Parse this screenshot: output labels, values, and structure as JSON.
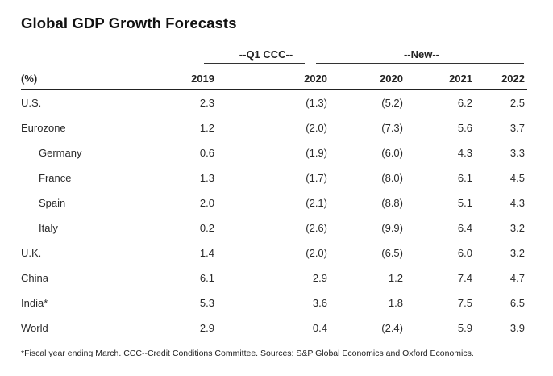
{
  "title": "Global GDP Growth Forecasts",
  "groups": {
    "q1": "--Q1 CCC--",
    "new": "--New--"
  },
  "columns": [
    "(%)",
    "2019",
    "2020",
    "2020",
    "2021",
    "2022"
  ],
  "rows": [
    {
      "label": "U.S.",
      "indent": false,
      "values": [
        "2.3",
        "(1.3)",
        "(5.2)",
        "6.2",
        "2.5"
      ]
    },
    {
      "label": "Eurozone",
      "indent": false,
      "values": [
        "1.2",
        "(2.0)",
        "(7.3)",
        "5.6",
        "3.7"
      ]
    },
    {
      "label": "Germany",
      "indent": true,
      "values": [
        "0.6",
        "(1.9)",
        "(6.0)",
        "4.3",
        "3.3"
      ]
    },
    {
      "label": "France",
      "indent": true,
      "values": [
        "1.3",
        "(1.7)",
        "(8.0)",
        "6.1",
        "4.5"
      ]
    },
    {
      "label": "Spain",
      "indent": true,
      "values": [
        "2.0",
        "(2.1)",
        "(8.8)",
        "5.1",
        "4.3"
      ]
    },
    {
      "label": "Italy",
      "indent": true,
      "values": [
        "0.2",
        "(2.6)",
        "(9.9)",
        "6.4",
        "3.2"
      ]
    },
    {
      "label": "U.K.",
      "indent": false,
      "values": [
        "1.4",
        "(2.0)",
        "(6.5)",
        "6.0",
        "3.2"
      ]
    },
    {
      "label": "China",
      "indent": false,
      "values": [
        "6.1",
        "2.9",
        "1.2",
        "7.4",
        "4.7"
      ]
    },
    {
      "label": "India*",
      "indent": false,
      "values": [
        "5.3",
        "3.6",
        "1.8",
        "7.5",
        "6.5"
      ]
    },
    {
      "label": "World",
      "indent": false,
      "values": [
        "2.9",
        "0.4",
        "(2.4)",
        "5.9",
        "3.9"
      ]
    }
  ],
  "footnote": "*Fiscal year ending March. CCC--Credit Conditions Committee. Sources: S&P Global Economics and Oxford Economics."
}
